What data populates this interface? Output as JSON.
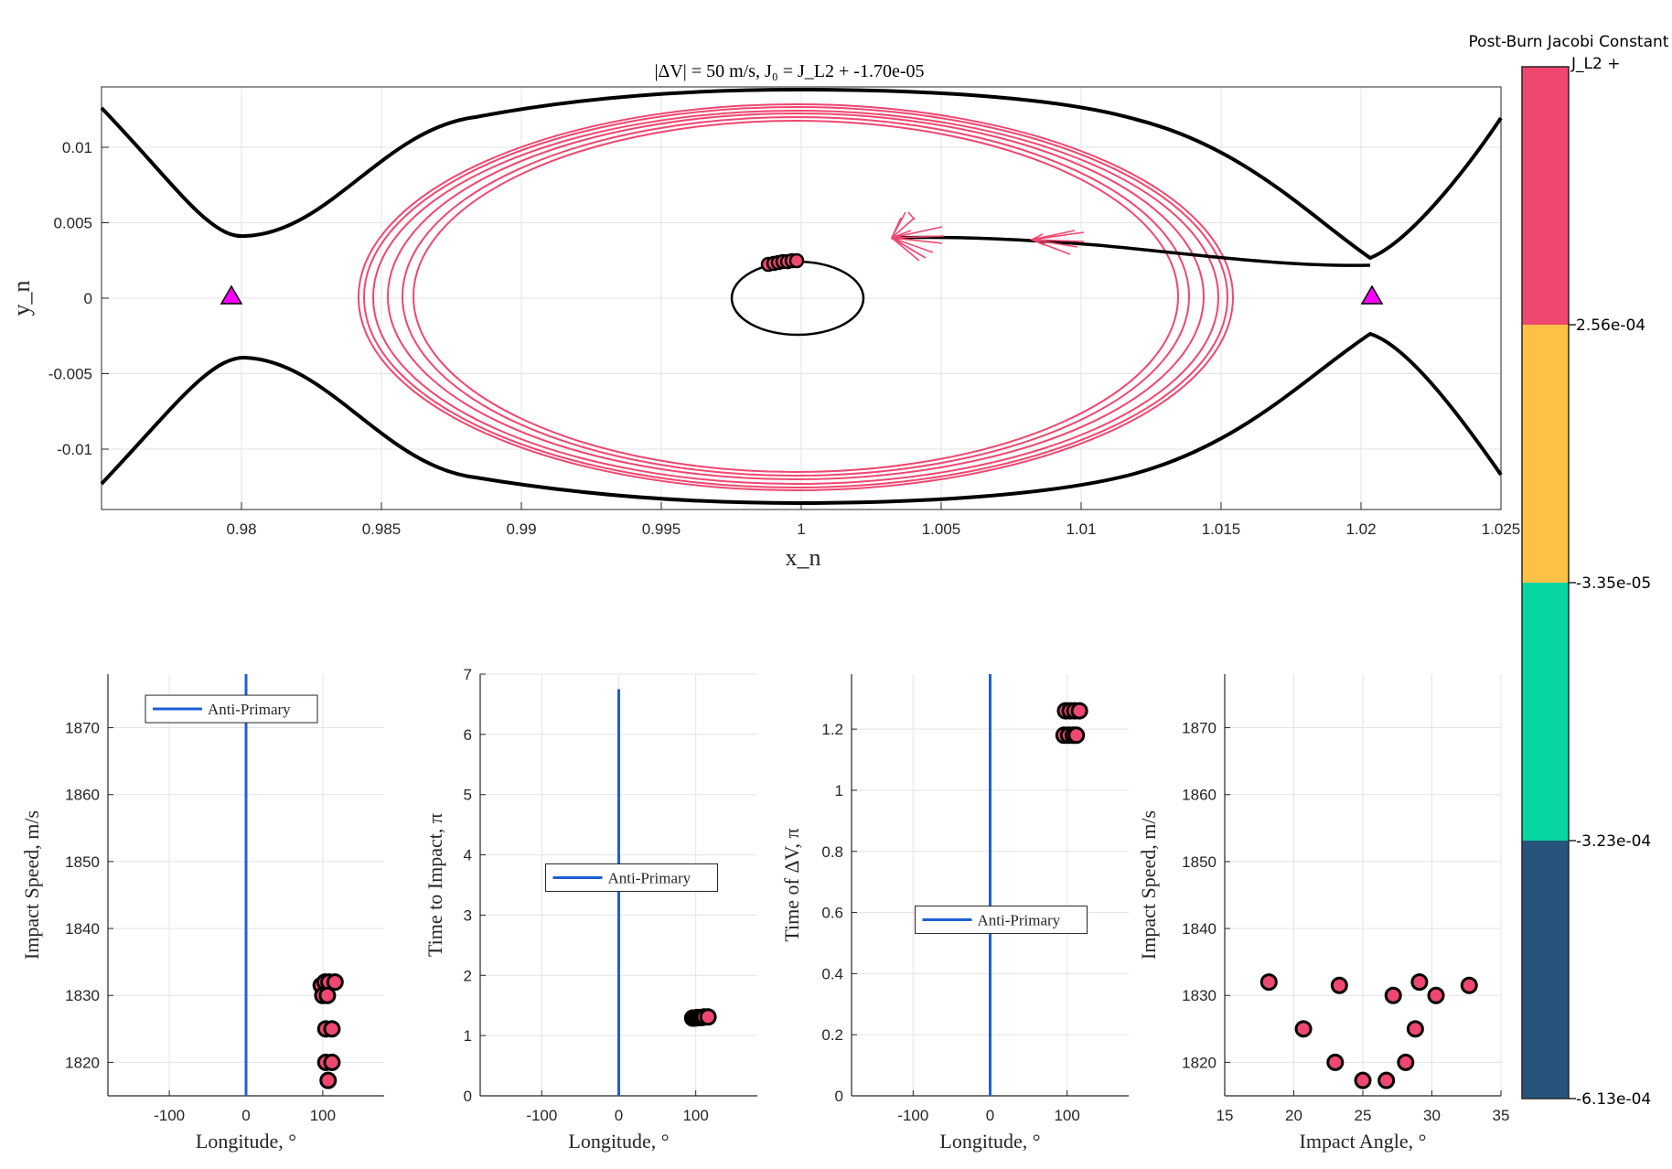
{
  "chart_data": [
    {
      "type": "line",
      "title": "|ΔV| = 50 m/s,     J₀ = J_L2 + -1.70e-05",
      "xlabel": "x_n",
      "ylabel": "y_n",
      "xlim": [
        0.975,
        1.025
      ],
      "ylim": [
        -0.014,
        0.014
      ],
      "xticks": [
        "0.98",
        "0.985",
        "0.99",
        "0.995",
        "1",
        "1.005",
        "1.01",
        "1.015",
        "1.02",
        "1.025"
      ],
      "yticks": [
        "-0.01",
        "-0.005",
        "0",
        "0.005",
        "0.01"
      ],
      "grid": true,
      "lagrange_points": [
        {
          "name": "L1",
          "x": 0.9798,
          "y": 0.0
        },
        {
          "name": "L2",
          "x": 1.0205,
          "y": 0.0
        }
      ],
      "secondary_body": {
        "center_x": 0.9999,
        "center_y": 0.0,
        "radius_x": 0.0023,
        "radius_y": 0.0023
      },
      "zero_velocity_curve_upper": {
        "x": [
          0.975,
          0.98,
          0.99,
          1.0,
          1.01,
          1.02,
          1.025
        ],
        "y": [
          0.0124,
          0.0041,
          0.0107,
          0.0137,
          0.0105,
          0.0025,
          0.0118
        ]
      },
      "zero_velocity_curve_lower": {
        "x": [
          0.975,
          0.98,
          0.99,
          1.0,
          1.01,
          1.02,
          1.025
        ],
        "y": [
          -0.0124,
          -0.0041,
          -0.0107,
          -0.0137,
          -0.0105,
          -0.0025,
          -0.0118
        ]
      },
      "trajectory_color": "#ef476f",
      "zero_velocity_color": "#000000",
      "lagrange_marker_color": "#ff00ff"
    },
    {
      "type": "scatter",
      "xlabel": "Longitude, °",
      "ylabel": "Impact Speed, m/s",
      "xlim": [
        -180,
        180
      ],
      "ylim": [
        1815,
        1878
      ],
      "xticks": [
        "-100",
        "0",
        "100"
      ],
      "yticks": [
        "1820",
        "1830",
        "1840",
        "1850",
        "1860",
        "1870"
      ],
      "legend": "Anti-Primary",
      "legend_placement": "top",
      "points": [
        [
          98,
          1831.5
        ],
        [
          103,
          1832
        ],
        [
          108,
          1832
        ],
        [
          116,
          1832
        ],
        [
          100,
          1830
        ],
        [
          106,
          1830
        ],
        [
          104,
          1825
        ],
        [
          112,
          1825
        ],
        [
          104,
          1820
        ],
        [
          112,
          1820
        ],
        [
          107,
          1817.3
        ]
      ],
      "vline_x": 0
    },
    {
      "type": "scatter",
      "xlabel": "Longitude, °",
      "ylabel": "Time to Impact, π",
      "xlim": [
        -180,
        180
      ],
      "ylim": [
        0,
        7
      ],
      "xticks": [
        "-100",
        "0",
        "100"
      ],
      "yticks": [
        "0",
        "1",
        "2",
        "3",
        "4",
        "5",
        "6",
        "7"
      ],
      "legend": "Anti-Primary",
      "legend_placement": "middle",
      "points": [
        [
          96,
          1.29
        ],
        [
          99,
          1.29
        ],
        [
          102,
          1.3
        ],
        [
          105,
          1.3
        ],
        [
          108,
          1.3
        ],
        [
          111,
          1.31
        ],
        [
          116,
          1.31
        ]
      ],
      "vline_x": 0,
      "vline_ymax": 6.75
    },
    {
      "type": "scatter",
      "xlabel": "Longitude, °",
      "ylabel": "Time of ΔV, π",
      "xlim": [
        -180,
        180
      ],
      "ylim": [
        0,
        1.38
      ],
      "xticks": [
        "-100",
        "0",
        "100"
      ],
      "yticks": [
        "0",
        "0.2",
        "0.4",
        "0.6",
        "0.8",
        "1",
        "1.2"
      ],
      "legend": "Anti-Primary",
      "legend_placement": "lower-middle",
      "points": [
        [
          98,
          1.26
        ],
        [
          104,
          1.26
        ],
        [
          110,
          1.26
        ],
        [
          116,
          1.26
        ],
        [
          96,
          1.18
        ],
        [
          102,
          1.18
        ],
        [
          108,
          1.18
        ],
        [
          112,
          1.18
        ]
      ],
      "vline_x": 0
    },
    {
      "type": "scatter",
      "xlabel": "Impact Angle, °",
      "ylabel": "Impact Speed, m/s",
      "xlim": [
        15,
        35
      ],
      "ylim": [
        1815,
        1878
      ],
      "xticks": [
        "15",
        "20",
        "25",
        "30",
        "35"
      ],
      "yticks": [
        "1820",
        "1830",
        "1840",
        "1850",
        "1860",
        "1870"
      ],
      "points": [
        [
          18.2,
          1832
        ],
        [
          20.7,
          1825
        ],
        [
          23.0,
          1820
        ],
        [
          23.3,
          1831.5
        ],
        [
          25.0,
          1817.3
        ],
        [
          26.7,
          1817.3
        ],
        [
          27.2,
          1830
        ],
        [
          28.1,
          1820
        ],
        [
          28.8,
          1825
        ],
        [
          29.1,
          1832
        ],
        [
          30.3,
          1830
        ],
        [
          32.7,
          1831.5
        ]
      ]
    }
  ],
  "colorbar": {
    "title": "Post-Burn Jacobi Constant",
    "top_label": "J_L2 +",
    "tick_labels": [
      "2.56e-04",
      "-3.35e-05",
      "-3.23e-04",
      "-6.13e-04"
    ],
    "colors": [
      "#ef476f",
      "#ffc145",
      "#06d6a0",
      "#26547c"
    ],
    "marker_fill": "#ef476f"
  }
}
